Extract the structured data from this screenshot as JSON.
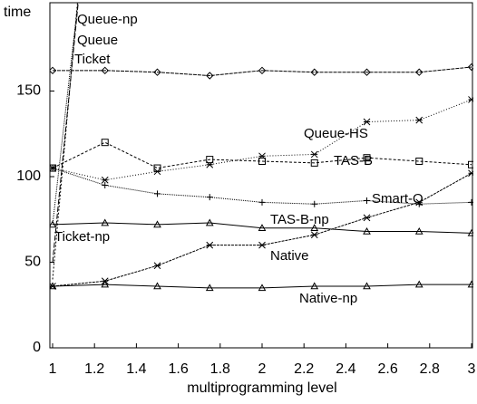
{
  "chart_data": {
    "type": "line",
    "ylabel": "time",
    "xlabel": "multiprogramming level",
    "x": [
      1,
      1.25,
      1.5,
      1.75,
      2,
      2.25,
      2.5,
      2.75,
      3
    ],
    "xlim": [
      1,
      3
    ],
    "xticks": [
      1,
      1.2,
      1.4,
      1.6,
      1.8,
      2,
      2.2,
      2.4,
      2.6,
      2.8,
      3
    ],
    "ylim": [
      0,
      200
    ],
    "yticks": [
      0,
      50,
      100,
      150
    ],
    "series": [
      {
        "name": "Queue-np",
        "color": "#000000",
        "marker": "none",
        "dash": "2,2",
        "values": [
          40,
          380,
          null,
          null,
          null,
          null,
          null,
          null,
          null
        ]
      },
      {
        "name": "Queue",
        "color": "#000000",
        "marker": "none",
        "dash": "6,2",
        "values": [
          50,
          360,
          null,
          null,
          null,
          null,
          null,
          null,
          null
        ]
      },
      {
        "name": "Ticket",
        "color": "#000000",
        "marker": "none",
        "dash": "1,1",
        "values": [
          72,
          340,
          null,
          null,
          null,
          null,
          null,
          null,
          null
        ]
      },
      {
        "name": "Queue-HS",
        "color": "#000000",
        "marker": "diamond",
        "dash": "4,1",
        "values": [
          162,
          162,
          161,
          159,
          162,
          161,
          161,
          161,
          164
        ]
      },
      {
        "name": "TAS-B",
        "color": "#000000",
        "marker": "asterisk",
        "dash": "1,2",
        "values": [
          105,
          98,
          103,
          107,
          112,
          113,
          132,
          133,
          145
        ]
      },
      {
        "name": "Smart-Q",
        "color": "#000000",
        "marker": "square",
        "dash": "3,2",
        "values": [
          105,
          120,
          105,
          110,
          109,
          108,
          111,
          109,
          107
        ]
      },
      {
        "name": "TAS-B-np",
        "color": "#000000",
        "marker": "plus",
        "dash": "1,1",
        "values": [
          105,
          95,
          90,
          88,
          85,
          84,
          86,
          84,
          85
        ]
      },
      {
        "name": "Ticket-np",
        "color": "#000000",
        "marker": "triangle",
        "dash": "none",
        "values": [
          72,
          73,
          72,
          73,
          70,
          70,
          68,
          68,
          67
        ]
      },
      {
        "name": "Native",
        "color": "#000000",
        "marker": "asterisk",
        "dash": "3,1",
        "values": [
          36,
          39,
          48,
          60,
          60,
          66,
          76,
          85,
          102
        ]
      },
      {
        "name": "Native-np",
        "color": "#000000",
        "marker": "triangle",
        "dash": "none",
        "values": [
          36,
          37,
          36,
          35,
          35,
          36,
          36,
          37,
          37
        ]
      }
    ]
  }
}
